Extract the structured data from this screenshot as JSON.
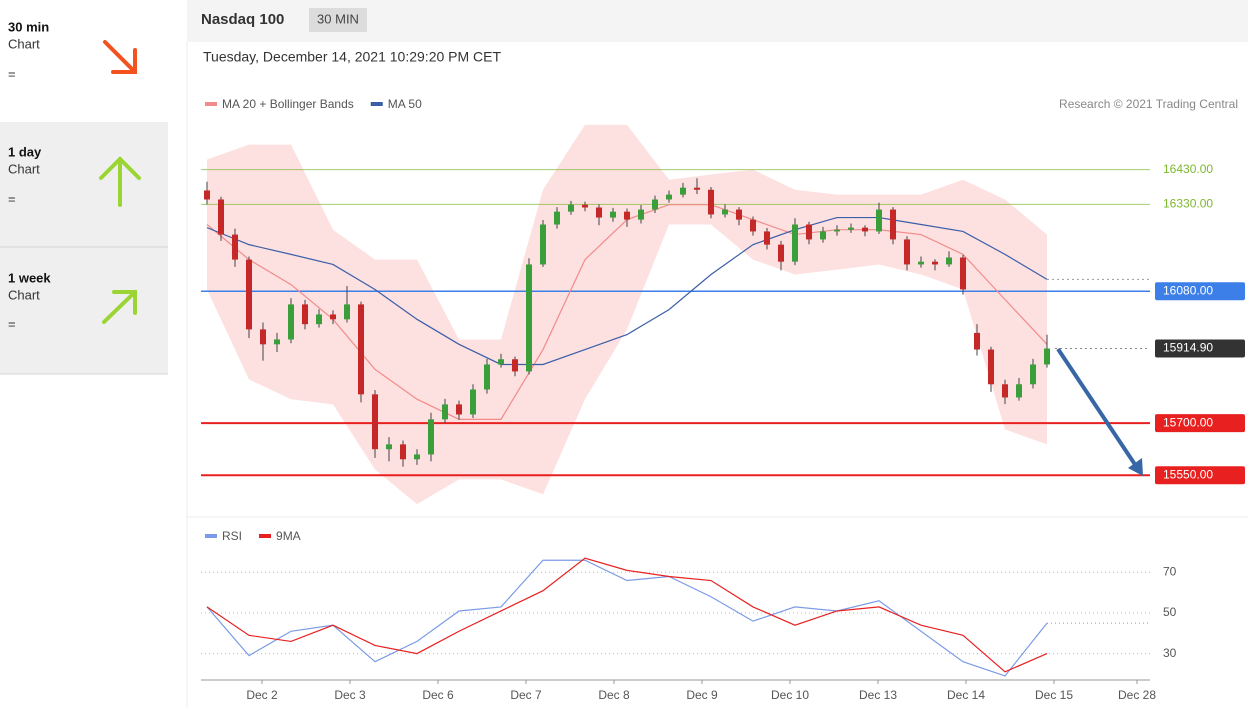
{
  "sidebar": [
    {
      "period": "30 min",
      "label": "Chart",
      "signal": "="
    },
    {
      "period": "1 day",
      "label": "Chart",
      "signal": "="
    },
    {
      "period": "1 week",
      "label": "Chart",
      "signal": "="
    }
  ],
  "header": {
    "title": "Nasdaq 100",
    "interval": "30 MIN",
    "timestamp": "Tuesday, December 14, 2021 10:29:20 PM CET"
  },
  "chart_data": [
    {
      "type": "candlestick",
      "source": "Research © 2021 Trading Central",
      "ylim": [
        15450,
        16570
      ],
      "up_color": "#3a9e3a",
      "down_color": "#c62828",
      "ohlc": [
        [
          16370,
          16395,
          16330,
          16344
        ],
        [
          16344,
          16352,
          16225,
          16243
        ],
        [
          16243,
          16260,
          16150,
          16171
        ],
        [
          16171,
          16180,
          15945,
          15970
        ],
        [
          15970,
          15990,
          15880,
          15927
        ],
        [
          15927,
          15960,
          15905,
          15941
        ],
        [
          15941,
          16060,
          15930,
          16042
        ],
        [
          16042,
          16055,
          15970,
          15985
        ],
        [
          15985,
          16028,
          15975,
          16013
        ],
        [
          16013,
          16025,
          15985,
          15999
        ],
        [
          15999,
          16095,
          15990,
          16042
        ],
        [
          16042,
          16050,
          15760,
          15783
        ],
        [
          15783,
          15795,
          15600,
          15625
        ],
        [
          15625,
          15660,
          15590,
          15639
        ],
        [
          15639,
          15650,
          15575,
          15596
        ],
        [
          15596,
          15625,
          15580,
          15610
        ],
        [
          15610,
          15730,
          15590,
          15711
        ],
        [
          15711,
          15770,
          15700,
          15754
        ],
        [
          15754,
          15765,
          15710,
          15725
        ],
        [
          15725,
          15812,
          15715,
          15797
        ],
        [
          15797,
          15885,
          15785,
          15869
        ],
        [
          15869,
          15900,
          15860,
          15884
        ],
        [
          15884,
          15892,
          15835,
          15849
        ],
        [
          15849,
          16175,
          15840,
          16157
        ],
        [
          16157,
          16285,
          16150,
          16272
        ],
        [
          16272,
          16322,
          16260,
          16309
        ],
        [
          16309,
          16340,
          16300,
          16329
        ],
        [
          16329,
          16338,
          16310,
          16321
        ],
        [
          16321,
          16330,
          16270,
          16292
        ],
        [
          16292,
          16320,
          16280,
          16309
        ],
        [
          16309,
          16318,
          16265,
          16286
        ],
        [
          16286,
          16328,
          16275,
          16315
        ],
        [
          16315,
          16355,
          16305,
          16344
        ],
        [
          16344,
          16370,
          16335,
          16358
        ],
        [
          16358,
          16392,
          16350,
          16378
        ],
        [
          16378,
          16405,
          16360,
          16372
        ],
        [
          16372,
          16380,
          16290,
          16301
        ],
        [
          16301,
          16330,
          16292,
          16315
        ],
        [
          16315,
          16322,
          16270,
          16286
        ],
        [
          16286,
          16295,
          16240,
          16252
        ],
        [
          16252,
          16262,
          16200,
          16214
        ],
        [
          16214,
          16225,
          16140,
          16165
        ],
        [
          16165,
          16290,
          16155,
          16272
        ],
        [
          16272,
          16280,
          16215,
          16229
        ],
        [
          16229,
          16265,
          16220,
          16252
        ],
        [
          16252,
          16270,
          16240,
          16257
        ],
        [
          16257,
          16275,
          16248,
          16263
        ],
        [
          16263,
          16270,
          16238,
          16252
        ],
        [
          16252,
          16335,
          16245,
          16315
        ],
        [
          16315,
          16322,
          16215,
          16229
        ],
        [
          16229,
          16238,
          16140,
          16157
        ],
        [
          16157,
          16180,
          16148,
          16165
        ],
        [
          16165,
          16172,
          16140,
          16157
        ],
        [
          16157,
          16195,
          16150,
          16177
        ],
        [
          16177,
          16185,
          16070,
          16085
        ],
        [
          15960,
          15985,
          15895,
          15912
        ],
        [
          15912,
          15920,
          15790,
          15812
        ],
        [
          15812,
          15825,
          15755,
          15774
        ],
        [
          15774,
          15830,
          15765,
          15812
        ],
        [
          15812,
          15885,
          15800,
          15869
        ],
        [
          15869,
          15955,
          15860,
          15915
        ]
      ],
      "overlays": [
        {
          "name": "MA 20 + Bollinger Bands",
          "color": "#f28b8b",
          "band_color": "#fde0e0",
          "x": [
            0,
            3,
            6,
            9,
            12,
            15,
            18,
            21,
            24,
            27,
            30,
            33,
            36,
            39,
            42,
            45,
            48,
            51,
            54,
            57,
            60
          ],
          "values": [
            16272,
            16171,
            16099,
            15999,
            15855,
            15769,
            15711,
            15711,
            15912,
            16171,
            16286,
            16329,
            16329,
            16286,
            16243,
            16257,
            16257,
            16243,
            16186,
            16056,
            15927
          ],
          "upper": [
            16459,
            16502,
            16502,
            16257,
            16171,
            16171,
            15941,
            15941,
            16372,
            16559,
            16559,
            16401,
            16416,
            16430,
            16372,
            16358,
            16358,
            16358,
            16401,
            16344,
            16243
          ],
          "lower": [
            16085,
            15826,
            15769,
            15754,
            15567,
            15467,
            15538,
            15538,
            15495,
            15769,
            15970,
            16272,
            16272,
            16171,
            16128,
            16142,
            16157,
            16128,
            16085,
            15682,
            15639
          ]
        },
        {
          "name": "MA 50",
          "color": "#3a5ea8",
          "x": [
            0,
            3,
            6,
            9,
            12,
            15,
            18,
            21,
            24,
            27,
            30,
            33,
            36,
            39,
            42,
            45,
            48,
            51,
            54,
            57,
            60
          ],
          "values": [
            16263,
            16214,
            16186,
            16157,
            16085,
            15999,
            15927,
            15869,
            15869,
            15912,
            15955,
            16027,
            16128,
            16214,
            16257,
            16292,
            16292,
            16272,
            16252,
            16186,
            16114
          ]
        }
      ],
      "levels": [
        {
          "value": 16430,
          "label": "16430.00",
          "color": "#7cb82f",
          "tag": false,
          "dash": false
        },
        {
          "value": 16330,
          "label": "16330.00",
          "color": "#7cb82f",
          "tag": false,
          "dash": false
        },
        {
          "value": 16080,
          "label": "16080.00",
          "color": "#3d7fe8",
          "tag": true,
          "dash": false
        },
        {
          "value": 15914.9,
          "label": "15914.90",
          "color": "#333333",
          "tag": true,
          "dash": true
        },
        {
          "value": 15700,
          "label": "15700.00",
          "color": "#e82020",
          "tag": true,
          "dash": false
        },
        {
          "value": 15550,
          "label": "15550.00",
          "color": "#e82020",
          "tag": true,
          "dash": false
        }
      ]
    },
    {
      "type": "line",
      "ylim": [
        16,
        84
      ],
      "yticks": [
        70,
        50,
        30
      ],
      "grid": true,
      "xlabels": [
        "Dec 2",
        "Dec 3",
        "Dec 6",
        "Dec 7",
        "Dec 8",
        "Dec 9",
        "Dec 10",
        "Dec 13",
        "Dec 14",
        "Dec 15",
        "Dec 28"
      ],
      "series": [
        {
          "name": "RSI",
          "color": "#7b9be6",
          "x": [
            0,
            3,
            6,
            9,
            12,
            15,
            18,
            21,
            24,
            27,
            30,
            33,
            36,
            39,
            42,
            45,
            48,
            51,
            54,
            57,
            60
          ],
          "values": [
            53,
            29,
            41,
            44,
            26,
            36,
            51,
            53,
            76,
            76,
            66,
            68,
            58,
            46,
            53,
            51,
            56,
            41,
            26,
            19,
            45
          ]
        },
        {
          "name": "9MA",
          "color": "#e82020",
          "x": [
            0,
            3,
            6,
            9,
            12,
            15,
            18,
            21,
            24,
            27,
            30,
            33,
            36,
            39,
            42,
            45,
            48,
            51,
            54,
            57,
            60
          ],
          "values": [
            53,
            39,
            36,
            44,
            34,
            30,
            41,
            51,
            61,
            77,
            71,
            68,
            66,
            53,
            44,
            51,
            53,
            44,
            39,
            21,
            30
          ]
        }
      ]
    }
  ]
}
